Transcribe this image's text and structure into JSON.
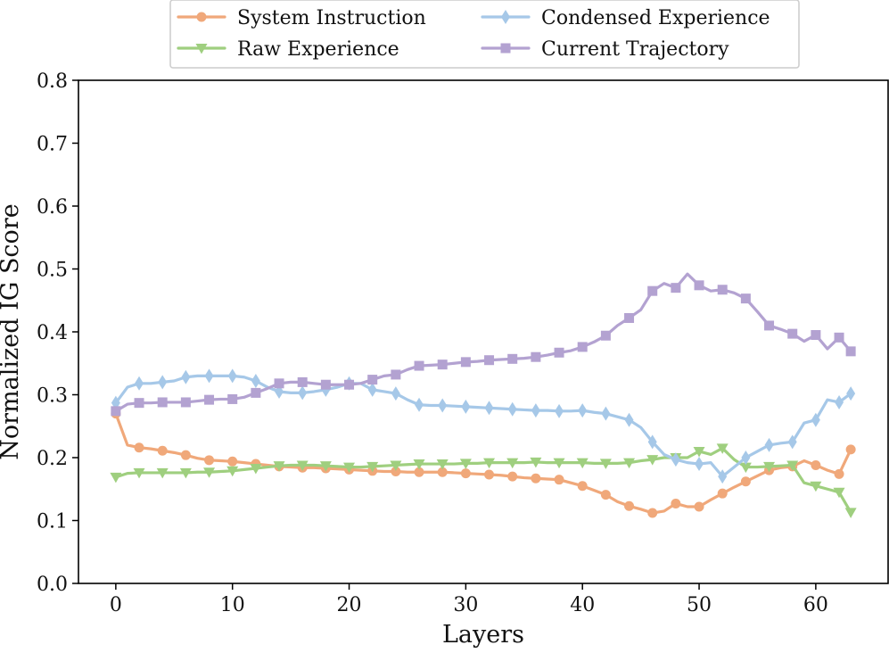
{
  "chart_data": {
    "type": "line",
    "xlabel": "Layers",
    "ylabel": "Normalized IG Score",
    "xlim": [
      -3.2,
      66.2
    ],
    "ylim": [
      0.0,
      0.8
    ],
    "xticks": [
      0,
      10,
      20,
      30,
      40,
      50,
      60
    ],
    "xtick_labels": [
      "0",
      "10",
      "20",
      "30",
      "40",
      "50",
      "60"
    ],
    "yticks": [
      0.0,
      0.1,
      0.2,
      0.3,
      0.4,
      0.5,
      0.6,
      0.7,
      0.8
    ],
    "ytick_labels": [
      "0.0",
      "0.1",
      "0.2",
      "0.3",
      "0.4",
      "0.5",
      "0.6",
      "0.7",
      "0.8"
    ],
    "grid": false,
    "legend_position": "top-center",
    "series": [
      {
        "name": "System Instruction",
        "color": "#f0a87a",
        "marker": "circle",
        "x": [
          0,
          1,
          2,
          3,
          4,
          5,
          6,
          7,
          8,
          9,
          10,
          11,
          12,
          13,
          14,
          15,
          16,
          17,
          18,
          19,
          20,
          21,
          22,
          23,
          24,
          25,
          26,
          27,
          28,
          29,
          30,
          31,
          32,
          33,
          34,
          35,
          36,
          37,
          38,
          39,
          40,
          41,
          42,
          43,
          44,
          45,
          46,
          47,
          48,
          49,
          50,
          51,
          52,
          53,
          54,
          55,
          56,
          57,
          58,
          59,
          60,
          61,
          62,
          63
        ],
        "values": [
          0.27,
          0.22,
          0.216,
          0.214,
          0.211,
          0.208,
          0.204,
          0.199,
          0.196,
          0.195,
          0.194,
          0.192,
          0.19,
          0.188,
          0.186,
          0.185,
          0.184,
          0.184,
          0.183,
          0.182,
          0.181,
          0.18,
          0.179,
          0.178,
          0.178,
          0.177,
          0.177,
          0.177,
          0.177,
          0.176,
          0.175,
          0.174,
          0.173,
          0.172,
          0.17,
          0.168,
          0.167,
          0.166,
          0.165,
          0.16,
          0.155,
          0.148,
          0.141,
          0.13,
          0.123,
          0.118,
          0.112,
          0.115,
          0.127,
          0.122,
          0.122,
          0.133,
          0.143,
          0.153,
          0.162,
          0.171,
          0.18,
          0.184,
          0.186,
          0.195,
          0.188,
          0.18,
          0.174,
          0.213
        ]
      },
      {
        "name": "Raw Experience",
        "color": "#9fcf7f",
        "marker": "triangle-down",
        "x": [
          0,
          1,
          2,
          3,
          4,
          5,
          6,
          7,
          8,
          9,
          10,
          11,
          12,
          13,
          14,
          15,
          16,
          17,
          18,
          19,
          20,
          21,
          22,
          23,
          24,
          25,
          26,
          27,
          28,
          29,
          30,
          31,
          32,
          33,
          34,
          35,
          36,
          37,
          38,
          39,
          40,
          41,
          42,
          43,
          44,
          45,
          46,
          47,
          48,
          49,
          50,
          51,
          52,
          53,
          54,
          55,
          56,
          57,
          58,
          59,
          60,
          61,
          62,
          63
        ],
        "values": [
          0.169,
          0.175,
          0.176,
          0.176,
          0.176,
          0.176,
          0.176,
          0.177,
          0.177,
          0.178,
          0.179,
          0.181,
          0.183,
          0.185,
          0.187,
          0.188,
          0.188,
          0.188,
          0.187,
          0.186,
          0.185,
          0.185,
          0.186,
          0.187,
          0.188,
          0.189,
          0.19,
          0.19,
          0.19,
          0.19,
          0.191,
          0.191,
          0.192,
          0.192,
          0.192,
          0.192,
          0.193,
          0.192,
          0.192,
          0.192,
          0.192,
          0.191,
          0.191,
          0.191,
          0.192,
          0.195,
          0.197,
          0.2,
          0.2,
          0.2,
          0.21,
          0.205,
          0.215,
          0.197,
          0.185,
          0.185,
          0.186,
          0.187,
          0.188,
          0.16,
          0.155,
          0.15,
          0.145,
          0.113
        ]
      },
      {
        "name": "Condensed Experience",
        "color": "#a6c8e8",
        "marker": "diamond",
        "x": [
          0,
          1,
          2,
          3,
          4,
          5,
          6,
          7,
          8,
          9,
          10,
          11,
          12,
          13,
          14,
          15,
          16,
          17,
          18,
          19,
          20,
          21,
          22,
          23,
          24,
          25,
          26,
          27,
          28,
          29,
          30,
          31,
          32,
          33,
          34,
          35,
          36,
          37,
          38,
          39,
          40,
          41,
          42,
          43,
          44,
          45,
          46,
          47,
          48,
          49,
          50,
          51,
          52,
          53,
          54,
          55,
          56,
          57,
          58,
          59,
          60,
          61,
          62,
          63
        ],
        "values": [
          0.287,
          0.312,
          0.318,
          0.318,
          0.32,
          0.322,
          0.328,
          0.33,
          0.33,
          0.33,
          0.33,
          0.328,
          0.322,
          0.312,
          0.305,
          0.303,
          0.303,
          0.305,
          0.308,
          0.312,
          0.318,
          0.318,
          0.308,
          0.305,
          0.302,
          0.292,
          0.284,
          0.283,
          0.283,
          0.282,
          0.281,
          0.28,
          0.279,
          0.278,
          0.277,
          0.276,
          0.275,
          0.275,
          0.274,
          0.274,
          0.275,
          0.272,
          0.27,
          0.265,
          0.26,
          0.248,
          0.225,
          0.205,
          0.197,
          0.192,
          0.19,
          0.192,
          0.17,
          0.185,
          0.2,
          0.21,
          0.22,
          0.223,
          0.225,
          0.255,
          0.26,
          0.292,
          0.288,
          0.302
        ]
      },
      {
        "name": "Current Trajectory",
        "color": "#b3a2d1",
        "marker": "square",
        "x": [
          0,
          1,
          2,
          3,
          4,
          5,
          6,
          7,
          8,
          9,
          10,
          11,
          12,
          13,
          14,
          15,
          16,
          17,
          18,
          19,
          20,
          21,
          22,
          23,
          24,
          25,
          26,
          27,
          28,
          29,
          30,
          31,
          32,
          33,
          34,
          35,
          36,
          37,
          38,
          39,
          40,
          41,
          42,
          43,
          44,
          45,
          46,
          47,
          48,
          49,
          50,
          51,
          52,
          53,
          54,
          55,
          56,
          57,
          58,
          59,
          60,
          61,
          62,
          63
        ],
        "values": [
          0.274,
          0.285,
          0.287,
          0.287,
          0.288,
          0.288,
          0.288,
          0.29,
          0.292,
          0.293,
          0.293,
          0.296,
          0.303,
          0.31,
          0.318,
          0.32,
          0.32,
          0.318,
          0.316,
          0.316,
          0.316,
          0.318,
          0.324,
          0.33,
          0.332,
          0.34,
          0.346,
          0.347,
          0.348,
          0.35,
          0.352,
          0.353,
          0.355,
          0.356,
          0.357,
          0.358,
          0.36,
          0.363,
          0.367,
          0.37,
          0.376,
          0.384,
          0.394,
          0.41,
          0.422,
          0.435,
          0.465,
          0.477,
          0.47,
          0.492,
          0.474,
          0.465,
          0.467,
          0.462,
          0.453,
          0.432,
          0.41,
          0.404,
          0.397,
          0.385,
          0.395,
          0.373,
          0.391,
          0.369
        ]
      }
    ]
  }
}
